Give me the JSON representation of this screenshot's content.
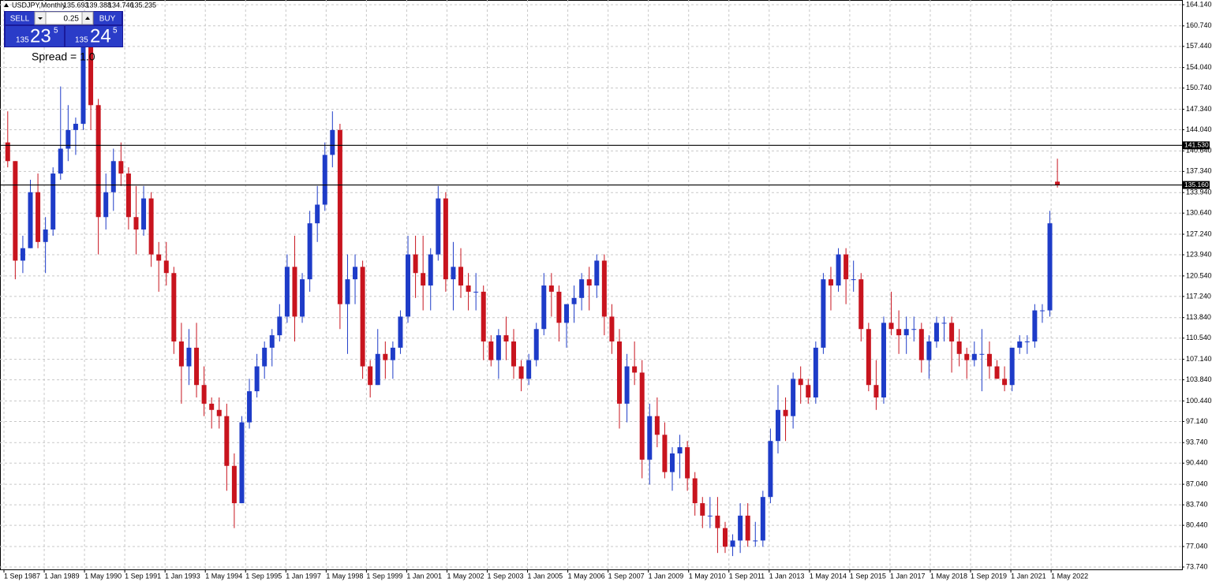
{
  "chart_data": {
    "type": "candlestick",
    "symbol": "USDJPY,Monthly",
    "up_color": "#1e3cc8",
    "down_color": "#c8141e",
    "grid": true,
    "ylim": [
      73.36,
      164.9
    ],
    "xlim": [
      "1 Sep 1987",
      "1 Sep 2026"
    ],
    "yticks": [
      {
        "value": 73.74,
        "label": "73.740"
      },
      {
        "value": 77.04,
        "label": "77.040"
      },
      {
        "value": 80.44,
        "label": "80.440"
      },
      {
        "value": 83.74,
        "label": "83.740"
      },
      {
        "value": 87.04,
        "label": "87.040"
      },
      {
        "value": 90.44,
        "label": "90.440"
      },
      {
        "value": 93.74,
        "label": "93.740"
      },
      {
        "value": 97.14,
        "label": "97.140"
      },
      {
        "value": 100.44,
        "label": "100.440"
      },
      {
        "value": 103.84,
        "label": "103.840"
      },
      {
        "value": 107.14,
        "label": "107.140"
      },
      {
        "value": 110.54,
        "label": "110.540"
      },
      {
        "value": 113.84,
        "label": "113.840"
      },
      {
        "value": 117.24,
        "label": "117.240"
      },
      {
        "value": 120.54,
        "label": "120.540"
      },
      {
        "value": 123.94,
        "label": "123.940"
      },
      {
        "value": 127.24,
        "label": "127.240"
      },
      {
        "value": 130.64,
        "label": "130.640"
      },
      {
        "value": 133.94,
        "label": "133.940"
      },
      {
        "value": 137.34,
        "label": "137.340"
      },
      {
        "value": 140.64,
        "label": "140.640"
      },
      {
        "value": 144.04,
        "label": "144.040"
      },
      {
        "value": 147.34,
        "label": "147.340"
      },
      {
        "value": 150.74,
        "label": "150.740"
      },
      {
        "value": 154.04,
        "label": "154.040"
      },
      {
        "value": 157.44,
        "label": "157.440"
      },
      {
        "value": 160.74,
        "label": "160.740"
      },
      {
        "value": 164.14,
        "label": "164.140"
      }
    ],
    "xticks": [
      "1 Sep 1987",
      "1 Jan 1989",
      "1 May 1990",
      "1 Sep 1991",
      "1 Jan 1993",
      "1 May 1994",
      "1 Sep 1995",
      "1 Jan 1997",
      "1 May 1998",
      "1 Sep 1999",
      "1 Jan 2001",
      "1 May 2002",
      "1 Sep 2003",
      "1 Jan 2005",
      "1 May 2006",
      "1 Sep 2007",
      "1 Jan 2009",
      "1 May 2010",
      "1 Sep 2011",
      "1 Jan 2013",
      "1 May 2014",
      "1 Sep 2015",
      "1 Jan 2017",
      "1 May 2018",
      "1 Sep 2019",
      "1 Jan 2021",
      "1 May 2022"
    ],
    "hlines": [
      {
        "value": 141.53,
        "label": "141.530"
      },
      {
        "value": 135.16,
        "label": "135.160"
      }
    ],
    "candles": [
      [
        "1 Sep 1987",
        142,
        147,
        138,
        139
      ],
      [
        "1 Dec 1987",
        139,
        139,
        120,
        123
      ],
      [
        "1 Mar 1988",
        123,
        127,
        121,
        125
      ],
      [
        "1 Jun 1988",
        125,
        136,
        125,
        134
      ],
      [
        "1 Sep 1988",
        134,
        137,
        125,
        126
      ],
      [
        "1 Dec 1988",
        126,
        130,
        121,
        128
      ],
      [
        "1 Mar 1989",
        128,
        138,
        127,
        137
      ],
      [
        "1 Jun 1989",
        137,
        151,
        136,
        141
      ],
      [
        "1 Sep 1989",
        141,
        148,
        139,
        144
      ],
      [
        "1 Dec 1989",
        144,
        146,
        140,
        145
      ],
      [
        "1 Mar 1990",
        145,
        160,
        144,
        158
      ],
      [
        "1 Jun 1990",
        158,
        159,
        144,
        148
      ],
      [
        "1 Sep 1990",
        148,
        149,
        124,
        130
      ],
      [
        "1 Dec 1990",
        130,
        137,
        128,
        134
      ],
      [
        "1 Mar 1991",
        134,
        141,
        131,
        139
      ],
      [
        "1 Jun 1991",
        139,
        142,
        135,
        137
      ],
      [
        "1 Sep 1991",
        137,
        138,
        128,
        130
      ],
      [
        "1 Dec 1991",
        130,
        135,
        124,
        128
      ],
      [
        "1 Mar 1992",
        128,
        135,
        127,
        133
      ],
      [
        "1 Jun 1992",
        133,
        134,
        122,
        124
      ],
      [
        "1 Sep 1992",
        124,
        126,
        118,
        123
      ],
      [
        "1 Dec 1992",
        123,
        126,
        119,
        121
      ],
      [
        "1 Mar 1993",
        121,
        122,
        108,
        110
      ],
      [
        "1 Jun 1993",
        110,
        113,
        100,
        106
      ],
      [
        "1 Sep 1993",
        106,
        112,
        103,
        109
      ],
      [
        "1 Dec 1993",
        109,
        113,
        101,
        103
      ],
      [
        "1 Mar 1994",
        103,
        106,
        98,
        100
      ],
      [
        "1 Jun 1994",
        100,
        101,
        96,
        99
      ],
      [
        "1 Sep 1994",
        99,
        101,
        96,
        98
      ],
      [
        "1 Dec 1994",
        98,
        100,
        86,
        90
      ],
      [
        "1 Mar 1995",
        90,
        92,
        80,
        84
      ],
      [
        "1 Jun 1995",
        84,
        98,
        84,
        97
      ],
      [
        "1 Sep 1995",
        97,
        104,
        96,
        102
      ],
      [
        "1 Dec 1995",
        102,
        108,
        101,
        106
      ],
      [
        "1 Mar 1996",
        106,
        110,
        104,
        109
      ],
      [
        "1 Jun 1996",
        109,
        112,
        106,
        111
      ],
      [
        "1 Sep 1996",
        111,
        116,
        110,
        114
      ],
      [
        "1 Dec 1996",
        114,
        124,
        113,
        122
      ],
      [
        "1 Mar 1997",
        122,
        127,
        110,
        114
      ],
      [
        "1 Jun 1997",
        114,
        121,
        113,
        120
      ],
      [
        "1 Sep 1997",
        120,
        131,
        118,
        129
      ],
      [
        "1 Dec 1997",
        129,
        135,
        126,
        132
      ],
      [
        "1 Mar 1998",
        132,
        142,
        131,
        140
      ],
      [
        "1 Jun 1998",
        140,
        147,
        138,
        144
      ],
      [
        "1 Sep 1998",
        144,
        145,
        112,
        116
      ],
      [
        "1 Dec 1998",
        116,
        124,
        108,
        120
      ],
      [
        "1 Mar 1999",
        120,
        124,
        116,
        122
      ],
      [
        "1 Jun 1999",
        122,
        123,
        104,
        106
      ],
      [
        "1 Sep 1999",
        106,
        107,
        101,
        103
      ],
      [
        "1 Dec 1999",
        103,
        112,
        103,
        108
      ],
      [
        "1 Mar 2000",
        108,
        110,
        104,
        107
      ],
      [
        "1 Jun 2000",
        107,
        110,
        104,
        109
      ],
      [
        "1 Sep 2000",
        109,
        115,
        108,
        114
      ],
      [
        "1 Dec 2000",
        114,
        127,
        113,
        124
      ],
      [
        "1 Mar 2001",
        124,
        127,
        117,
        121
      ],
      [
        "1 Jun 2001",
        121,
        127,
        115,
        119
      ],
      [
        "1 Sep 2001",
        119,
        125,
        115,
        124
      ],
      [
        "1 Dec 2001",
        124,
        135,
        123,
        133
      ],
      [
        "1 Mar 2002",
        133,
        134,
        118,
        120
      ],
      [
        "1 Jun 2002",
        120,
        126,
        115,
        122
      ],
      [
        "1 Sep 2002",
        122,
        125,
        117,
        119
      ],
      [
        "1 Dec 2002",
        119,
        121,
        115,
        118
      ],
      [
        "1 Mar 2003",
        118,
        121,
        115,
        118
      ],
      [
        "1 Jun 2003",
        118,
        119,
        107,
        110
      ],
      [
        "1 Sep 2003",
        110,
        111,
        106,
        107
      ],
      [
        "1 Dec 2003",
        107,
        112,
        104,
        111
      ],
      [
        "1 Mar 2004",
        111,
        114,
        107,
        110
      ],
      [
        "1 Jun 2004",
        110,
        112,
        104,
        106
      ],
      [
        "1 Sep 2004",
        106,
        107,
        102,
        104
      ],
      [
        "1 Dec 2004",
        104,
        108,
        103,
        107
      ],
      [
        "1 Mar 2005",
        107,
        113,
        106,
        112
      ],
      [
        "1 Jun 2005",
        112,
        121,
        111,
        119
      ],
      [
        "1 Sep 2005",
        119,
        121,
        114,
        118
      ],
      [
        "1 Dec 2005",
        118,
        119,
        110,
        113
      ],
      [
        "1 Mar 2006",
        113,
        116,
        109,
        116
      ],
      [
        "1 Jun 2006",
        116,
        119,
        113,
        117
      ],
      [
        "1 Sep 2006",
        117,
        121,
        115,
        120
      ],
      [
        "1 Dec 2006",
        120,
        122,
        115,
        119
      ],
      [
        "1 Mar 2007",
        119,
        124,
        117,
        123
      ],
      [
        "1 Jun 2007",
        123,
        124,
        111,
        114
      ],
      [
        "1 Sep 2007",
        114,
        116,
        108,
        110
      ],
      [
        "1 Dec 2007",
        110,
        112,
        96,
        100
      ],
      [
        "1 Mar 2008",
        100,
        108,
        97,
        106
      ],
      [
        "1 Jun 2008",
        106,
        110,
        103,
        105
      ],
      [
        "1 Sep 2008",
        105,
        107,
        88,
        91
      ],
      [
        "1 Dec 2008",
        91,
        100,
        87,
        98
      ],
      [
        "1 Mar 2009",
        98,
        101,
        93,
        95
      ],
      [
        "1 Jun 2009",
        95,
        97,
        88,
        89
      ],
      [
        "1 Sep 2009",
        89,
        93,
        86,
        92
      ],
      [
        "1 Dec 2009",
        92,
        95,
        88,
        93
      ],
      [
        "1 Mar 2010",
        93,
        94,
        86,
        88
      ],
      [
        "1 Jun 2010",
        88,
        89,
        82,
        84
      ],
      [
        "1 Sep 2010",
        84,
        85,
        80,
        82
      ],
      [
        "1 Dec 2010",
        82,
        85,
        80,
        82
      ],
      [
        "1 Mar 2011",
        82,
        85,
        76,
        80
      ],
      [
        "1 Jun 2011",
        80,
        81,
        76,
        77
      ],
      [
        "1 Sep 2011",
        77,
        79,
        75.5,
        78
      ],
      [
        "1 Dec 2011",
        78,
        84,
        76,
        82
      ],
      [
        "1 Mar 2012",
        82,
        84,
        77,
        78
      ],
      [
        "1 Jun 2012",
        78,
        81,
        77,
        78
      ],
      [
        "1 Sep 2012",
        78,
        86,
        77,
        85
      ],
      [
        "1 Dec 2012",
        85,
        96,
        84,
        94
      ],
      [
        "1 Mar 2013",
        94,
        103,
        92,
        99
      ],
      [
        "1 Jun 2013",
        99,
        101,
        94,
        98
      ],
      [
        "1 Sep 2013",
        98,
        105,
        96,
        104
      ],
      [
        "1 Dec 2013",
        104,
        106,
        100,
        103
      ],
      [
        "1 Mar 2014",
        103,
        104,
        100,
        101
      ],
      [
        "1 Jun 2014",
        101,
        110,
        100,
        109
      ],
      [
        "1 Sep 2014",
        109,
        121,
        108,
        120
      ],
      [
        "1 Dec 2014",
        120,
        122,
        115,
        119
      ],
      [
        "1 Mar 2015",
        119,
        125,
        118,
        124
      ],
      [
        "1 Jun 2015",
        124,
        125,
        116,
        120
      ],
      [
        "1 Sep 2015",
        120,
        123,
        118,
        120
      ],
      [
        "1 Dec 2015",
        120,
        121,
        110,
        112
      ],
      [
        "1 Mar 2016",
        112,
        113,
        102,
        103
      ],
      [
        "1 Jun 2016",
        103,
        107,
        99,
        101
      ],
      [
        "1 Sep 2016",
        101,
        114,
        100,
        113
      ],
      [
        "1 Dec 2016",
        113,
        118,
        111,
        112
      ],
      [
        "1 Mar 2017",
        112,
        115,
        108,
        111
      ],
      [
        "1 Jun 2017",
        111,
        114,
        108,
        112
      ],
      [
        "1 Sep 2017",
        112,
        114,
        110,
        112
      ],
      [
        "1 Dec 2017",
        112,
        113,
        105,
        107
      ],
      [
        "1 Mar 2018",
        107,
        111,
        104,
        110
      ],
      [
        "1 Jun 2018",
        110,
        114,
        109,
        113
      ],
      [
        "1 Sep 2018",
        113,
        114,
        110,
        113
      ],
      [
        "1 Dec 2018",
        113,
        114,
        105,
        110
      ],
      [
        "1 Mar 2019",
        110,
        112,
        106,
        108
      ],
      [
        "1 Jun 2019",
        108,
        109,
        104,
        107
      ],
      [
        "1 Sep 2019",
        107,
        110,
        106,
        108
      ],
      [
        "1 Dec 2019",
        108,
        112,
        102,
        108
      ],
      [
        "1 Mar 2020",
        108,
        110,
        104,
        106
      ],
      [
        "1 Jun 2020",
        106,
        107,
        104,
        104
      ],
      [
        "1 Sep 2020",
        104,
        106,
        102,
        103
      ],
      [
        "1 Dec 2020",
        103,
        109,
        102,
        109
      ],
      [
        "1 Mar 2021",
        109,
        111,
        108,
        110
      ],
      [
        "1 Jun 2021",
        110,
        111,
        108,
        110
      ],
      [
        "1 Sep 2021",
        110,
        116,
        109,
        115
      ],
      [
        "1 Dec 2021",
        115,
        116,
        113,
        115
      ],
      [
        "1 Mar 2022",
        115,
        131,
        114,
        129
      ],
      [
        "1 Jun 2022",
        135.693,
        139.388,
        134.746,
        135.235
      ]
    ]
  },
  "trade_panel": {
    "sell": "SELL",
    "buy": "BUY",
    "lot": "0.25",
    "sell_price": {
      "big_figure": "135",
      "pips": "23",
      "fraction": "5"
    },
    "buy_price": {
      "big_figure": "135",
      "pips": "24",
      "fraction": "5"
    },
    "spread": "Spread = 1.0"
  }
}
